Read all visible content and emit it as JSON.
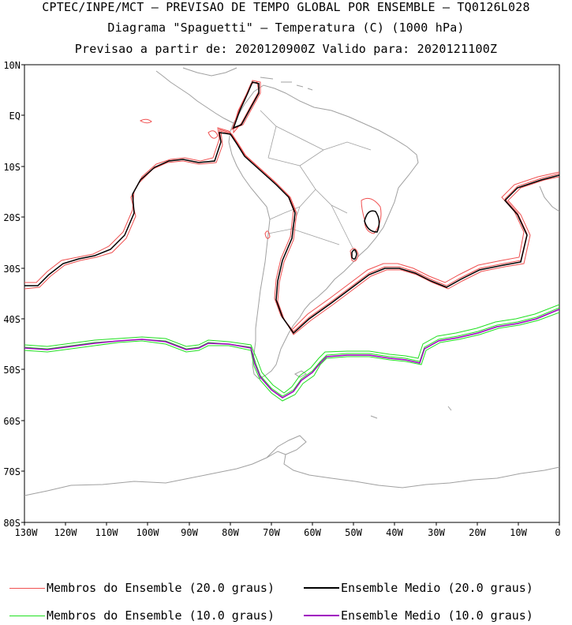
{
  "titles": {
    "line1": "CPTEC/INPE/MCT – PREVISAO DE TEMPO GLOBAL POR ENSEMBLE – TQ0126L028",
    "line2": "Diagrama \"Spaguetti\" – Temperatura (C) (1000 hPa)",
    "line3": "Previsao a partir de: 2020120900Z  Valido para: 2020121100Z"
  },
  "axes": {
    "lat_labels": [
      "10N",
      "EQ",
      "10S",
      "20S",
      "30S",
      "40S",
      "50S",
      "60S",
      "70S",
      "80S"
    ],
    "lon_labels": [
      "130W",
      "120W",
      "110W",
      "100W",
      "90W",
      "80W",
      "70W",
      "60W",
      "50W",
      "40W",
      "30W",
      "20W",
      "10W",
      "0"
    ]
  },
  "legend": [
    {
      "label": "Membros do Ensemble (20.0 graus)",
      "color": "#f05050"
    },
    {
      "label": "Ensemble Medio (20.0 graus)",
      "color": "#000000"
    },
    {
      "label": "Membros do Ensemble (10.0 graus)",
      "color": "#20e020"
    },
    {
      "label": "Ensemble Medio (10.0 graus)",
      "color": "#a000c0"
    }
  ],
  "colors": {
    "coast": "#a0a0a0",
    "iso20_members": "#f05050",
    "iso20_mean": "#000000",
    "iso10_members": "#20e020",
    "iso10_mean": "#a000c0"
  }
}
